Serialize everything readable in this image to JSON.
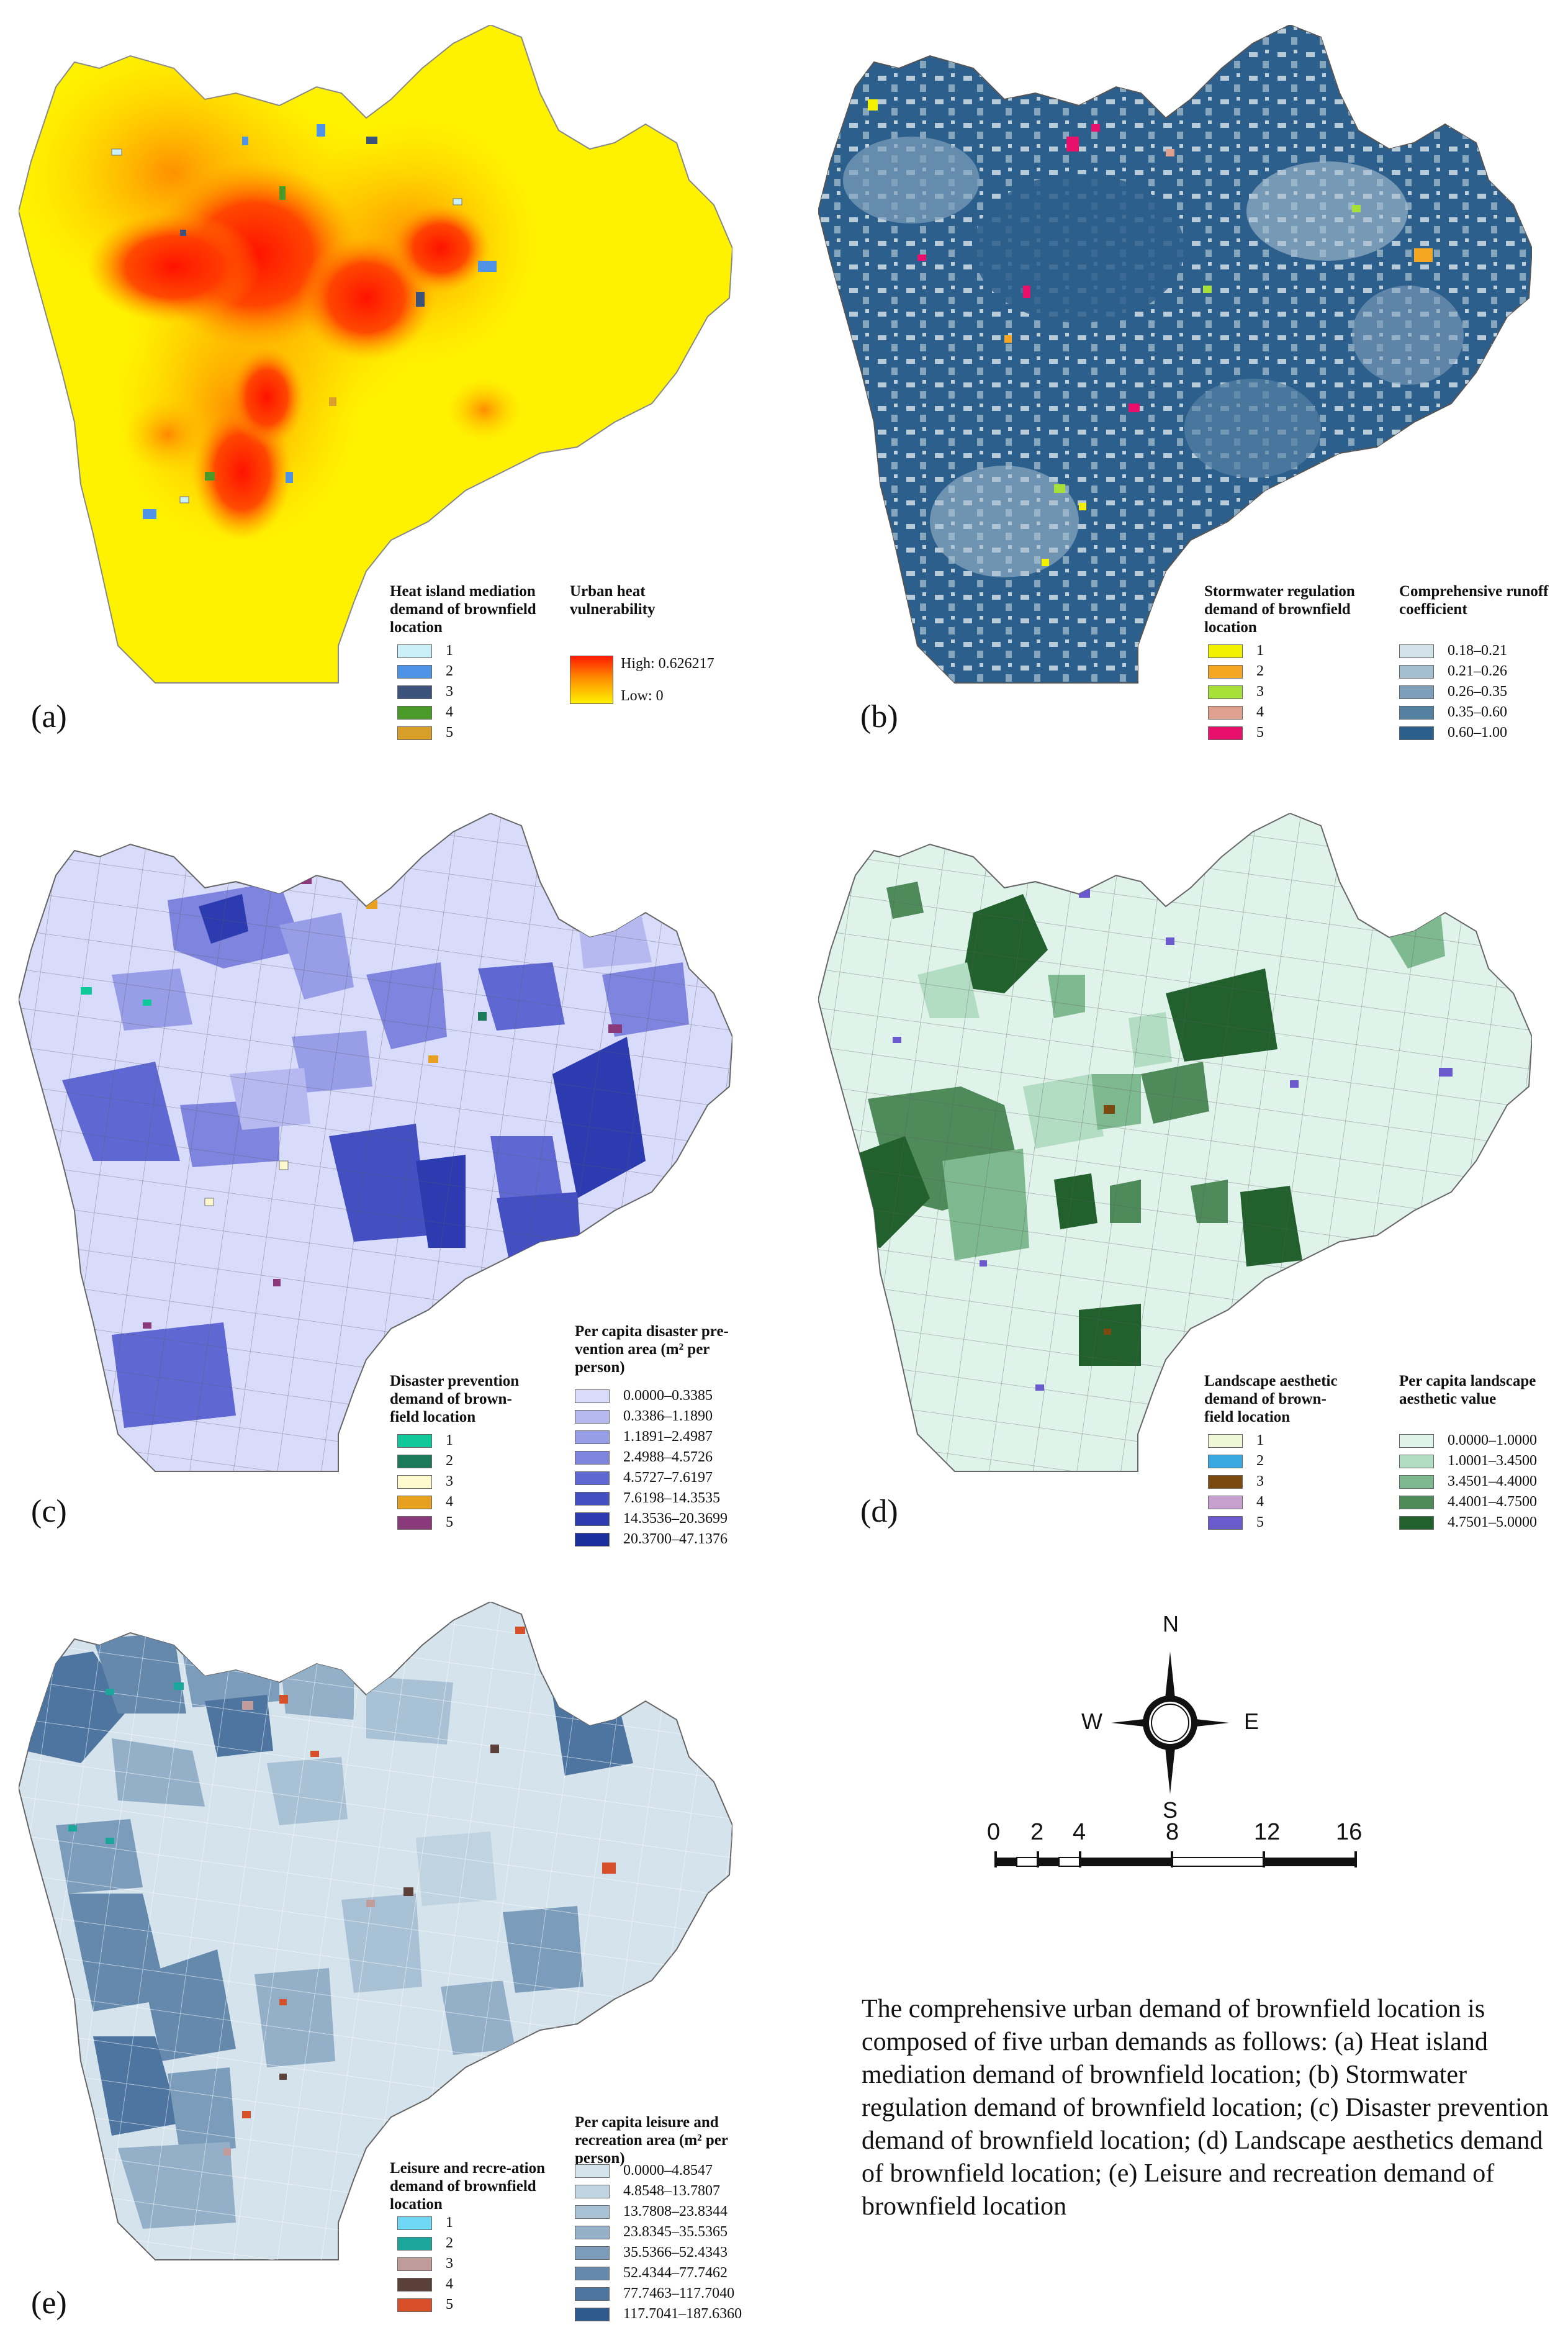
{
  "panels": {
    "a": {
      "label": "(a)",
      "legend_title": "Heat island mediation demand of brownfield location",
      "classes": [
        "1",
        "2",
        "3",
        "4",
        "5"
      ],
      "class_colors": [
        "#c9f1f7",
        "#4f93e6",
        "#3b527a",
        "#4a9a2a",
        "#d8a02a"
      ],
      "surface_title": "Urban heat vulnerability",
      "high_label": "High: 0.626217",
      "low_label": "Low: 0"
    },
    "b": {
      "label": "(b)",
      "legend_title": "Stormwater regulation demand of brownfield location",
      "classes": [
        "1",
        "2",
        "3",
        "4",
        "5"
      ],
      "class_colors": [
        "#f2f200",
        "#f5a623",
        "#a8e03a",
        "#e0a090",
        "#e8106a"
      ],
      "surface_title": "Comprehensive runoff coefficient",
      "ranges": [
        "0.18–0.21",
        "0.21–0.26",
        "0.26–0.35",
        "0.35–0.60",
        "0.60–1.00"
      ],
      "range_colors": [
        "#d3e1e8",
        "#a6bfd0",
        "#7e9fba",
        "#5480a2",
        "#2d5f8c"
      ]
    },
    "c": {
      "label": "(c)",
      "legend_title": "Disaster prevention demand of brown-field location",
      "classes": [
        "1",
        "2",
        "3",
        "4",
        "5"
      ],
      "class_colors": [
        "#10c89a",
        "#1a7a5a",
        "#fffacd",
        "#e8a020",
        "#8a3a7a"
      ],
      "surface_title": "Per capita disaster pre-vention area (m² per person)",
      "ranges": [
        "0.0000–0.3385",
        "0.3386–1.1890",
        "1.1891–2.4987",
        "2.4988–4.5726",
        "4.5727–7.6197",
        "7.6198–14.3535",
        "14.3536–20.3699",
        "20.3700–47.1376"
      ],
      "range_colors": [
        "#d9dbfb",
        "#b5b9f0",
        "#979de6",
        "#7f85de",
        "#5f68d2",
        "#4450c2",
        "#2c3bb0",
        "#1a2e9c"
      ]
    },
    "d": {
      "label": "(d)",
      "legend_title": "Landscape aesthetic demand of brown-field location",
      "classes": [
        "1",
        "2",
        "3",
        "4",
        "5"
      ],
      "class_colors": [
        "#eef8d8",
        "#3aa8e0",
        "#7a4a10",
        "#c8a0d0",
        "#6a5acd"
      ],
      "surface_title": "Per capita landscape aesthetic value",
      "ranges": [
        "0.0000–1.0000",
        "1.0001–3.4500",
        "3.4501–4.4000",
        "4.4001–4.7500",
        "4.7501–5.0000"
      ],
      "range_colors": [
        "#dff3ea",
        "#b3ddc3",
        "#7fb98f",
        "#4e8a5a",
        "#22612e"
      ]
    },
    "e": {
      "label": "(e)",
      "legend_title": "Leisure and recre-ation demand of brownfield location",
      "classes": [
        "1",
        "2",
        "3",
        "4",
        "5"
      ],
      "class_colors": [
        "#6fd8f5",
        "#1aa69a",
        "#c09c9a",
        "#5a4038",
        "#d8502a"
      ],
      "surface_title": "Per capita leisure and recreation area (m² per person)",
      "ranges": [
        "0.0000–4.8547",
        "4.8548–13.7807",
        "13.7808–23.8344",
        "23.8345–35.5365",
        "35.5366–52.4343",
        "52.4344–77.7462",
        "77.7463–117.7040",
        "117.7041–187.6360"
      ],
      "range_colors": [
        "#d5e3ec",
        "#c0d3e0",
        "#a9c1d4",
        "#93b0c8",
        "#7b9dbb",
        "#6489ad",
        "#4e75a0",
        "#2f5a8c"
      ]
    }
  },
  "compass": {
    "n": "N",
    "s": "S",
    "e": "E",
    "w": "W"
  },
  "scale_bar": {
    "ticks": [
      "0",
      "2",
      "4",
      "8",
      "12",
      "16"
    ]
  },
  "caption": "The comprehensive urban demand of brownfield location is composed of five urban demands as follows: (a) Heat island mediation demand of brownfield location; (b) Stormwater regulation demand of brownfield location; (c) Disaster prevention demand of brownfield location; (d) Landscape aesthetics demand of brownfield location; (e) Leisure and recreation demand of brownfield location"
}
